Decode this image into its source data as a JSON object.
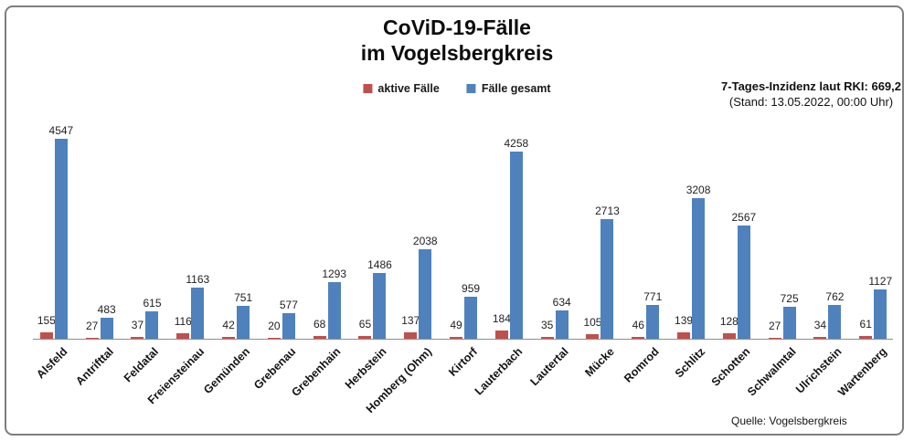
{
  "title": {
    "line1": "CoViD-19-Fälle",
    "line2": "im Vogelsbergkreis"
  },
  "legend": [
    {
      "label": "aktive Fälle",
      "color": "#C0504D"
    },
    {
      "label": "Fälle gesamt",
      "color": "#4F81BD"
    }
  ],
  "annotation": {
    "line1": "7-Tages-Inzidenz laut RKI: 669,2",
    "line2": "(Stand: 13.05.2022, 00:00 Uhr)"
  },
  "source": "Quelle: Vogelsbergkreis",
  "colors": {
    "active": "#C0504D",
    "total": "#4F81BD",
    "axis": "#8e8e8e"
  },
  "chart_data": {
    "type": "bar",
    "title": "CoViD-19-Fälle im Vogelsbergkreis",
    "categories": [
      "Alsfeld",
      "Antrifttal",
      "Feldatal",
      "Freiensteinau",
      "Gemünden",
      "Grebenau",
      "Grebenhain",
      "Herbstein",
      "Homberg (Ohm)",
      "Kirtorf",
      "Lauterbach",
      "Lautertal",
      "Mücke",
      "Romrod",
      "Schlitz",
      "Schotten",
      "Schwalmtal",
      "Ulrichstein",
      "Wartenberg"
    ],
    "series": [
      {
        "name": "aktive Fälle",
        "color": "#C0504D",
        "values": [
          155,
          27,
          37,
          116,
          42,
          20,
          68,
          65,
          137,
          49,
          184,
          35,
          105,
          46,
          139,
          128,
          27,
          34,
          61
        ]
      },
      {
        "name": "Fälle gesamt",
        "color": "#4F81BD",
        "values": [
          4547,
          483,
          615,
          1163,
          751,
          577,
          1293,
          1486,
          2038,
          959,
          4258,
          634,
          2713,
          771,
          3208,
          2567,
          725,
          762,
          1127
        ]
      }
    ],
    "data_labels": true,
    "grid": false,
    "legend_position": "top-center",
    "xlabel": "",
    "ylabel": "",
    "ylim": [
      0,
      4547
    ]
  }
}
